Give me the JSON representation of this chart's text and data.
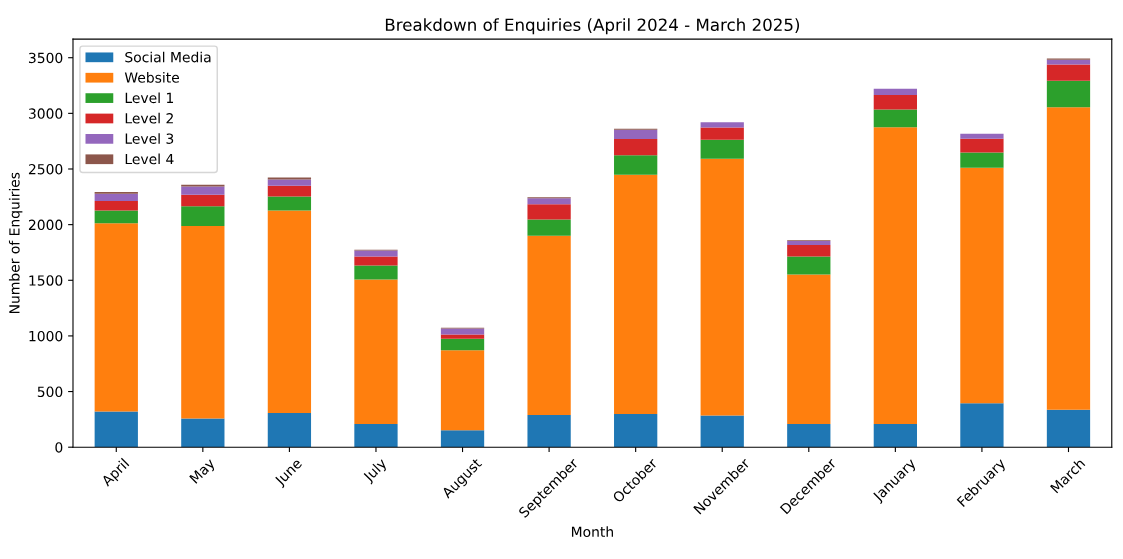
{
  "chart_data": {
    "type": "bar",
    "stacked": true,
    "title": "Breakdown of Enquiries (April 2024 - March 2025)",
    "xlabel": "Month",
    "ylabel": "Number of Enquiries",
    "categories": [
      "April",
      "May",
      "June",
      "July",
      "August",
      "September",
      "October",
      "November",
      "December",
      "January",
      "February",
      "March"
    ],
    "series": [
      {
        "name": "Social Media",
        "color": "#1f77b4",
        "values": [
          320,
          257,
          307,
          209,
          153,
          290,
          299,
          285,
          209,
          209,
          394,
          337
        ]
      },
      {
        "name": "Website",
        "color": "#ff7f0e",
        "values": [
          1692,
          1730,
          1820,
          1298,
          718,
          1611,
          2149,
          2308,
          1343,
          2666,
          2118,
          2717
        ]
      },
      {
        "name": "Level 1",
        "color": "#2ca02c",
        "values": [
          115,
          179,
          125,
          126,
          103,
          145,
          175,
          170,
          162,
          159,
          136,
          239
        ]
      },
      {
        "name": "Level 2",
        "color": "#d62728",
        "values": [
          86,
          103,
          98,
          81,
          39,
          137,
          146,
          109,
          103,
          131,
          124,
          146
        ]
      },
      {
        "name": "Level 3",
        "color": "#9467bd",
        "values": [
          64,
          73,
          56,
          53,
          53,
          55,
          84,
          47,
          36,
          56,
          44,
          42
        ]
      },
      {
        "name": "Level 4",
        "color": "#8c564b",
        "values": [
          17,
          17,
          17,
          8,
          8,
          9,
          8,
          null,
          6,
          null,
          null,
          11
        ]
      }
    ],
    "ylim": [
      0,
      3667
    ],
    "yticks": [
      0,
      500,
      1000,
      1500,
      2000,
      2500,
      3000,
      3500
    ],
    "grid": false,
    "legend": "top left"
  }
}
